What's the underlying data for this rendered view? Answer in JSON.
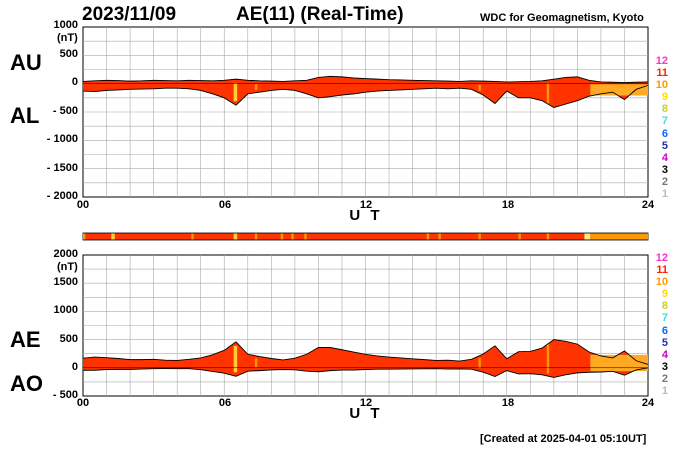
{
  "header": {
    "date": "2023/11/09",
    "title": "AE(11) (Real-Time)",
    "source": "WDC for Geomagnetism, Kyoto"
  },
  "footer": {
    "created": "[Created at 2025-04-01 05:10UT]"
  },
  "legend": {
    "items": [
      {
        "label": "12",
        "color": "#ff33cc"
      },
      {
        "label": "11",
        "color": "#ff2200"
      },
      {
        "label": "10",
        "color": "#ff9900"
      },
      {
        "label": "9",
        "color": "#ffdd00"
      },
      {
        "label": "8",
        "color": "#cccc33"
      },
      {
        "label": "7",
        "color": "#44dddd"
      },
      {
        "label": "6",
        "color": "#1166ff"
      },
      {
        "label": "5",
        "color": "#2233aa"
      },
      {
        "label": "4",
        "color": "#cc00cc"
      },
      {
        "label": "3",
        "color": "#000000"
      },
      {
        "label": "2",
        "color": "#777777"
      },
      {
        "label": "1",
        "color": "#bbbbbb"
      }
    ]
  },
  "colors": {
    "fill_main": "#ff3300",
    "fill_orange": "#ff9900",
    "fill_yellow": "#ffcc33",
    "grid": "#aaaaaa"
  },
  "chart_data": [
    {
      "type": "area",
      "name": "AU/AL",
      "series": [
        {
          "name": "AU"
        },
        {
          "name": "AL"
        }
      ],
      "ylabel_top": "AU",
      "ylabel_bottom": "AL",
      "unit": "(nT)",
      "xlabel": "U T",
      "xlim": [
        0,
        24
      ],
      "ylim": [
        -2000,
        1000
      ],
      "yticks": [
        "1000",
        "500",
        "0",
        "- 500",
        "- 1000",
        "- 1500",
        "- 2000"
      ],
      "xticks": [
        "00",
        "06",
        "12",
        "18",
        "24"
      ],
      "hours": [
        0,
        0.5,
        1,
        1.5,
        2,
        2.5,
        3,
        3.5,
        4,
        4.5,
        5,
        5.5,
        6,
        6.5,
        7,
        7.5,
        8,
        8.5,
        9,
        9.5,
        10,
        10.5,
        11,
        11.5,
        12,
        12.5,
        13,
        13.5,
        14,
        14.5,
        15,
        15.5,
        16,
        16.5,
        17,
        17.5,
        18,
        18.5,
        19,
        19.5,
        20,
        20.5,
        21,
        21.5,
        22,
        22.5,
        23,
        23.5,
        24
      ],
      "upper": [
        40,
        50,
        60,
        55,
        45,
        50,
        60,
        55,
        50,
        60,
        55,
        50,
        60,
        80,
        60,
        50,
        45,
        40,
        50,
        60,
        110,
        130,
        120,
        100,
        90,
        80,
        70,
        65,
        60,
        55,
        50,
        45,
        40,
        50,
        45,
        40,
        30,
        35,
        40,
        50,
        80,
        110,
        120,
        60,
        30,
        25,
        20,
        25,
        30
      ],
      "lower": [
        -130,
        -140,
        -120,
        -110,
        -100,
        -95,
        -90,
        -80,
        -80,
        -90,
        -120,
        -180,
        -250,
        -380,
        -180,
        -150,
        -120,
        -100,
        -120,
        -180,
        -250,
        -230,
        -200,
        -180,
        -150,
        -130,
        -120,
        -110,
        -100,
        -90,
        -80,
        -90,
        -80,
        -100,
        -200,
        -350,
        -130,
        -250,
        -250,
        -300,
        -420,
        -360,
        -300,
        -220,
        -180,
        -150,
        -280,
        -100,
        -30
      ]
    },
    {
      "type": "area",
      "name": "AE/AO",
      "series": [
        {
          "name": "AE"
        },
        {
          "name": "AO"
        }
      ],
      "ylabel_top": "AE",
      "ylabel_bottom": "AO",
      "unit": "(nT)",
      "xlabel": "U T",
      "xlim": [
        0,
        24
      ],
      "ylim": [
        -500,
        2000
      ],
      "yticks": [
        "2000",
        "1500",
        "1000",
        "500",
        "0",
        "- 500"
      ],
      "xticks": [
        "00",
        "06",
        "12",
        "18",
        "24"
      ],
      "hours": [
        0,
        0.5,
        1,
        1.5,
        2,
        2.5,
        3,
        3.5,
        4,
        4.5,
        5,
        5.5,
        6,
        6.5,
        7,
        7.5,
        8,
        8.5,
        9,
        9.5,
        10,
        10.5,
        11,
        11.5,
        12,
        12.5,
        13,
        13.5,
        14,
        14.5,
        15,
        15.5,
        16,
        16.5,
        17,
        17.5,
        18,
        18.5,
        19,
        19.5,
        20,
        20.5,
        21,
        21.5,
        22,
        22.5,
        23,
        23.5,
        24
      ],
      "upper": [
        170,
        190,
        180,
        165,
        145,
        145,
        150,
        135,
        130,
        150,
        175,
        230,
        310,
        460,
        240,
        200,
        165,
        140,
        170,
        240,
        360,
        360,
        320,
        280,
        240,
        210,
        190,
        175,
        160,
        145,
        130,
        135,
        120,
        150,
        245,
        390,
        160,
        285,
        290,
        350,
        500,
        470,
        420,
        280,
        210,
        175,
        300,
        125,
        60
      ],
      "lower": [
        -45,
        -45,
        -30,
        -28,
        -28,
        -23,
        -15,
        -13,
        -15,
        -15,
        -33,
        -65,
        -95,
        -150,
        -60,
        -50,
        -38,
        -30,
        -35,
        -60,
        -70,
        -50,
        -40,
        -40,
        -30,
        -25,
        -25,
        -23,
        -20,
        -18,
        -15,
        -23,
        -20,
        -25,
        -78,
        -155,
        -50,
        -108,
        -105,
        -125,
        -170,
        -125,
        -90,
        -80,
        -75,
        -63,
        -130,
        -38,
        0
      ]
    }
  ],
  "color_strip": [
    {
      "start": 0.0,
      "end": 0.1,
      "color": "#ff9900"
    },
    {
      "start": 1.2,
      "end": 1.35,
      "color": "#ffcc33"
    },
    {
      "start": 4.6,
      "end": 4.7,
      "color": "#ff9900"
    },
    {
      "start": 6.4,
      "end": 6.55,
      "color": "#ffcc33"
    },
    {
      "start": 7.3,
      "end": 7.4,
      "color": "#ff9900"
    },
    {
      "start": 8.4,
      "end": 8.5,
      "color": "#ff9900"
    },
    {
      "start": 8.85,
      "end": 8.95,
      "color": "#ff9900"
    },
    {
      "start": 9.4,
      "end": 9.5,
      "color": "#ff9900"
    },
    {
      "start": 14.6,
      "end": 14.7,
      "color": "#ff9900"
    },
    {
      "start": 15.1,
      "end": 15.2,
      "color": "#ff9900"
    },
    {
      "start": 16.8,
      "end": 16.9,
      "color": "#ff9900"
    },
    {
      "start": 18.5,
      "end": 18.6,
      "color": "#ff9900"
    },
    {
      "start": 19.7,
      "end": 19.8,
      "color": "#ff9900"
    },
    {
      "start": 21.3,
      "end": 21.55,
      "color": "#ffee88"
    },
    {
      "start": 21.55,
      "end": 24.0,
      "color": "#ff9900"
    }
  ],
  "highlight_bands": [
    {
      "start": 6.4,
      "end": 6.55,
      "color": "#ffcc33"
    },
    {
      "start": 7.3,
      "end": 7.4,
      "color": "#ff9900"
    },
    {
      "start": 16.8,
      "end": 16.9,
      "color": "#ff9900"
    },
    {
      "start": 19.7,
      "end": 19.8,
      "color": "#ff9900"
    },
    {
      "start": 21.55,
      "end": 24.0,
      "color": "#ffaa22"
    }
  ]
}
